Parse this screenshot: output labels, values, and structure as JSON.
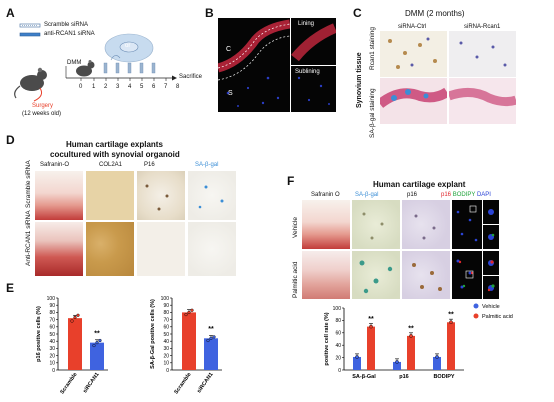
{
  "panels": {
    "a": "A",
    "b": "B",
    "c": "C",
    "d": "D",
    "e": "E",
    "f": "F"
  },
  "a": {
    "legend_scramble": "Scramble siRNA",
    "legend_anti": "anti-RCAN1 siRNA",
    "dmm": "DMM",
    "or": "or",
    "sacrifice": "Sacrifice",
    "surgery": "Surgery",
    "surgery_age": "(12 weeks old)",
    "days": [
      "0",
      "1",
      "2",
      "3",
      "4",
      "5",
      "6",
      "7",
      "8"
    ]
  },
  "b": {
    "c": "C",
    "s": "S",
    "lining": "Lining",
    "sublining": "Sublining"
  },
  "c": {
    "title": "DMM (2 months)",
    "col_ctrl": "siRNA-Ctrl",
    "col_rcan": "siRNA-Rcan1",
    "side": "Synovium tissue",
    "row1": "Rcan1 staining",
    "row2": "SA-β-gal staining"
  },
  "d": {
    "title1": "Human cartilage explants",
    "title2": "cocultured with synovial organoid",
    "cols": [
      "Safranin-O",
      "COL2A1",
      "P16",
      "SA-β-gal"
    ],
    "row1": "Scramble siRNA",
    "row2": "Anti-RCAN1 siRNA",
    "sablue": "#3b8ed6"
  },
  "e_charts": [
    {
      "type": "bar",
      "ylabel": "p16 positive cells (%)",
      "categories": [
        "Scramble",
        "siRCAN1"
      ],
      "values": [
        72,
        38
      ],
      "points": [
        [
          68,
          73,
          76
        ],
        [
          34,
          38,
          41
        ]
      ],
      "ylim": [
        0,
        100
      ],
      "yticks": [
        "0",
        "10",
        "20",
        "30",
        "40",
        "50",
        "60",
        "70",
        "80",
        "90",
        "100"
      ],
      "colors": [
        "#e8402b",
        "#3f63e0"
      ],
      "sig": "**"
    },
    {
      "type": "bar",
      "ylabel": "SA-β-Gal positive cells (%)",
      "categories": [
        "Scramble",
        "siRCAN1"
      ],
      "values": [
        80,
        44
      ],
      "points": [
        [
          77,
          80,
          83
        ],
        [
          41,
          44,
          46
        ]
      ],
      "ylim": [
        0,
        100
      ],
      "yticks": [
        "0",
        "10",
        "20",
        "30",
        "40",
        "50",
        "60",
        "70",
        "80",
        "90",
        "100"
      ],
      "colors": [
        "#e8402b",
        "#3f63e0"
      ],
      "sig": "**"
    }
  ],
  "f": {
    "title": "Human cartilage explant",
    "cols": [
      "Safranin O",
      "SA-β-gal",
      "p16"
    ],
    "fluor_p16": "p16",
    "fluor_bodipy": "BODIPY",
    "fluor_dapi": "DAPI",
    "row1": "Vehicle",
    "row2": "Palmitic acid",
    "fluor_colors": {
      "p16": "#e0262b",
      "bodipy": "#1fa33a",
      "dapi": "#2b44d6"
    }
  },
  "chart_data": {
    "type": "bar",
    "ylabel": "positive cell rate (%)",
    "categories": [
      "SA-β-Gal",
      "p16",
      "BODIPY"
    ],
    "series": [
      {
        "name": "Vehicle",
        "values": [
          21,
          13,
          21
        ],
        "color": "#3f63e0"
      },
      {
        "name": "Palmitic acid",
        "values": [
          70,
          55,
          77
        ],
        "color": "#e8402b"
      }
    ],
    "ylim": [
      0,
      100
    ],
    "yticks": [
      "0",
      "20",
      "40",
      "60",
      "80",
      "100"
    ],
    "sig": [
      "**",
      "**",
      "**"
    ],
    "legend_position": "right"
  }
}
